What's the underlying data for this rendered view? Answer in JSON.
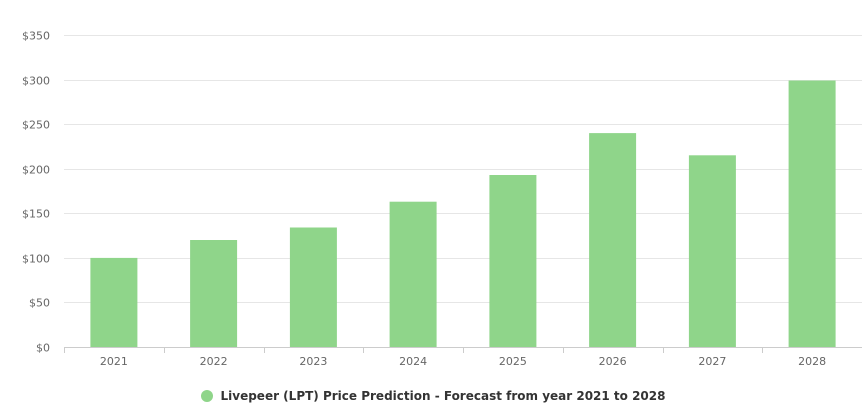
{
  "chart_data": {
    "type": "bar",
    "categories": [
      "2021",
      "2022",
      "2023",
      "2024",
      "2025",
      "2026",
      "2027",
      "2028"
    ],
    "series": [
      {
        "name": "Livepeer (LPT) Price Prediction - Forecast from year 2021 to 2028",
        "values": [
          100,
          120,
          134,
          163,
          193,
          240,
          215,
          299
        ],
        "color": "#8fd58a"
      }
    ],
    "y_ticks": [
      "$0",
      "$50",
      "$100",
      "$150",
      "$200",
      "$250",
      "$300",
      "$350"
    ],
    "y_tick_values": [
      0,
      50,
      100,
      150,
      200,
      250,
      300,
      350
    ],
    "ylim": [
      0,
      350
    ],
    "grid": true,
    "legend_position": "bottom-center",
    "title": "",
    "xlabel": "",
    "ylabel": ""
  }
}
